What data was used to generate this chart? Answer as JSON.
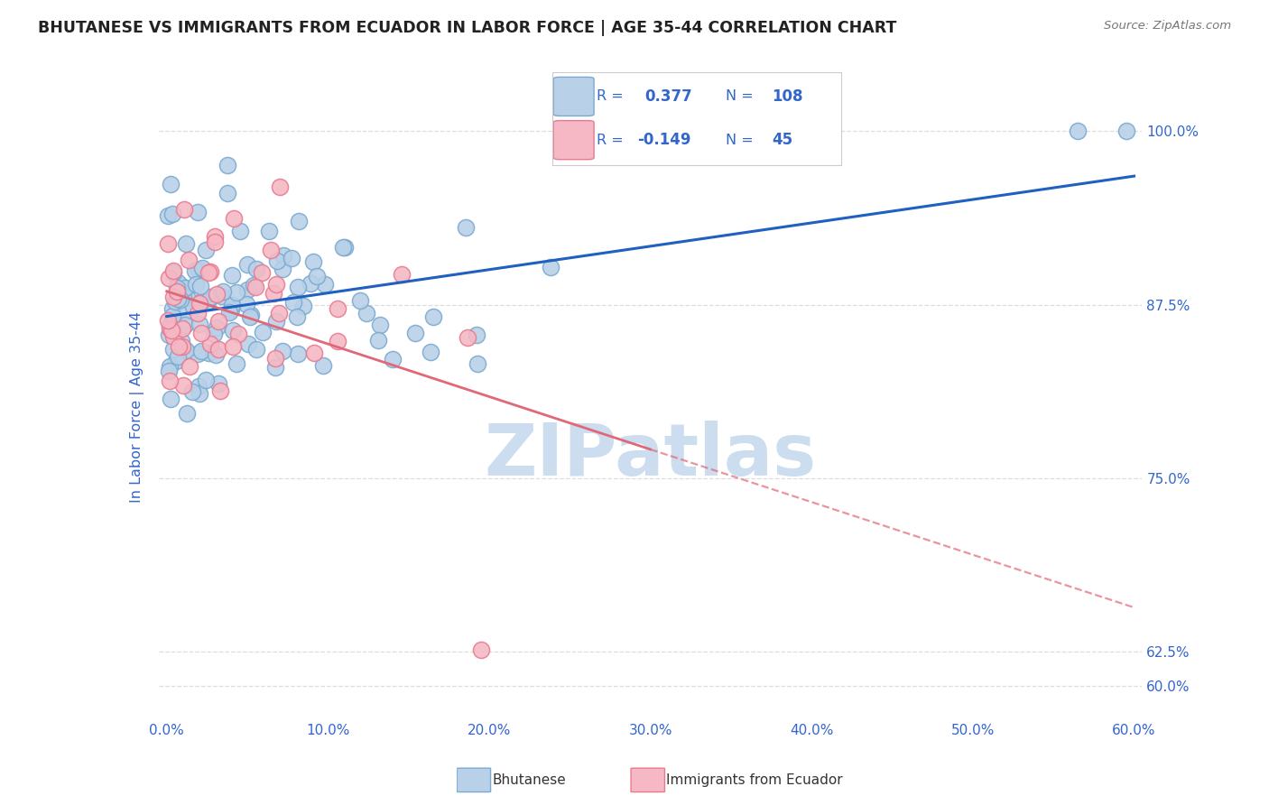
{
  "title": "BHUTANESE VS IMMIGRANTS FROM ECUADOR IN LABOR FORCE | AGE 35-44 CORRELATION CHART",
  "source": "Source: ZipAtlas.com",
  "ylabel": "In Labor Force | Age 35-44",
  "xlim": [
    -0.005,
    0.605
  ],
  "ylim": [
    0.578,
    1.025
  ],
  "xtick_values": [
    0.0,
    0.1,
    0.2,
    0.3,
    0.4,
    0.5,
    0.6
  ],
  "xtick_labels": [
    "0.0%",
    "10.0%",
    "20.0%",
    "30.0%",
    "40.0%",
    "50.0%",
    "60.0%"
  ],
  "ytick_values": [
    0.6,
    0.625,
    0.75,
    0.875,
    1.0
  ],
  "ytick_labels": [
    "60.0%",
    "62.5%",
    "75.0%",
    "87.5%",
    "100.0%"
  ],
  "blue_R": 0.377,
  "blue_N": 108,
  "pink_R": -0.149,
  "pink_N": 45,
  "blue_color": "#b8d0e8",
  "blue_edge": "#7aaad0",
  "pink_color": "#f5b8c4",
  "pink_edge": "#e87a90",
  "blue_line_color": "#2060c0",
  "pink_line_color": "#e06878",
  "pink_line_solid_end": 0.3,
  "watermark": "ZIPatlas",
  "watermark_color": "#ccddf0",
  "legend_text_color": "#3366cc",
  "title_color": "#222222",
  "axis_label_color": "#3366cc",
  "background_color": "#ffffff",
  "grid_color": "#dddddd",
  "blue_seed": 42,
  "pink_seed": 99
}
